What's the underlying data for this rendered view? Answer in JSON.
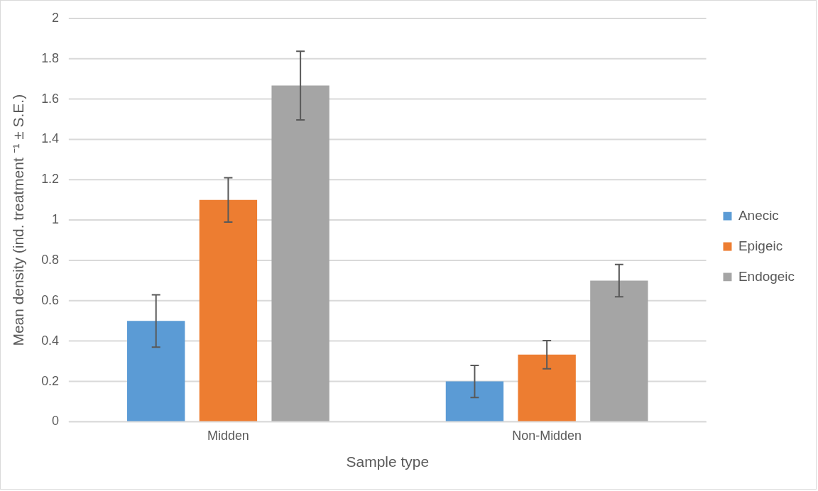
{
  "chart_data": {
    "type": "bar",
    "xlabel": "Sample type",
    "ylabel": "Mean density (ind. treatment ⁻¹ ± S.E.)",
    "categories": [
      "Midden",
      "Non-Midden"
    ],
    "series": [
      {
        "name": "Anecic",
        "color": "#5b9bd5",
        "values": [
          0.5,
          0.2
        ],
        "errors": [
          0.13,
          0.08
        ]
      },
      {
        "name": "Epigeic",
        "color": "#ed7d31",
        "values": [
          1.1,
          0.333
        ],
        "errors": [
          0.11,
          0.07
        ]
      },
      {
        "name": "Endogeic",
        "color": "#a5a5a5",
        "values": [
          1.667,
          0.7
        ],
        "errors": [
          0.17,
          0.08
        ]
      }
    ],
    "ylim": [
      0,
      2
    ],
    "yticks": [
      0,
      0.2,
      0.4,
      0.6,
      0.8,
      1,
      1.2,
      1.4,
      1.6,
      1.8,
      2
    ],
    "grid": "y",
    "legend": "right"
  }
}
